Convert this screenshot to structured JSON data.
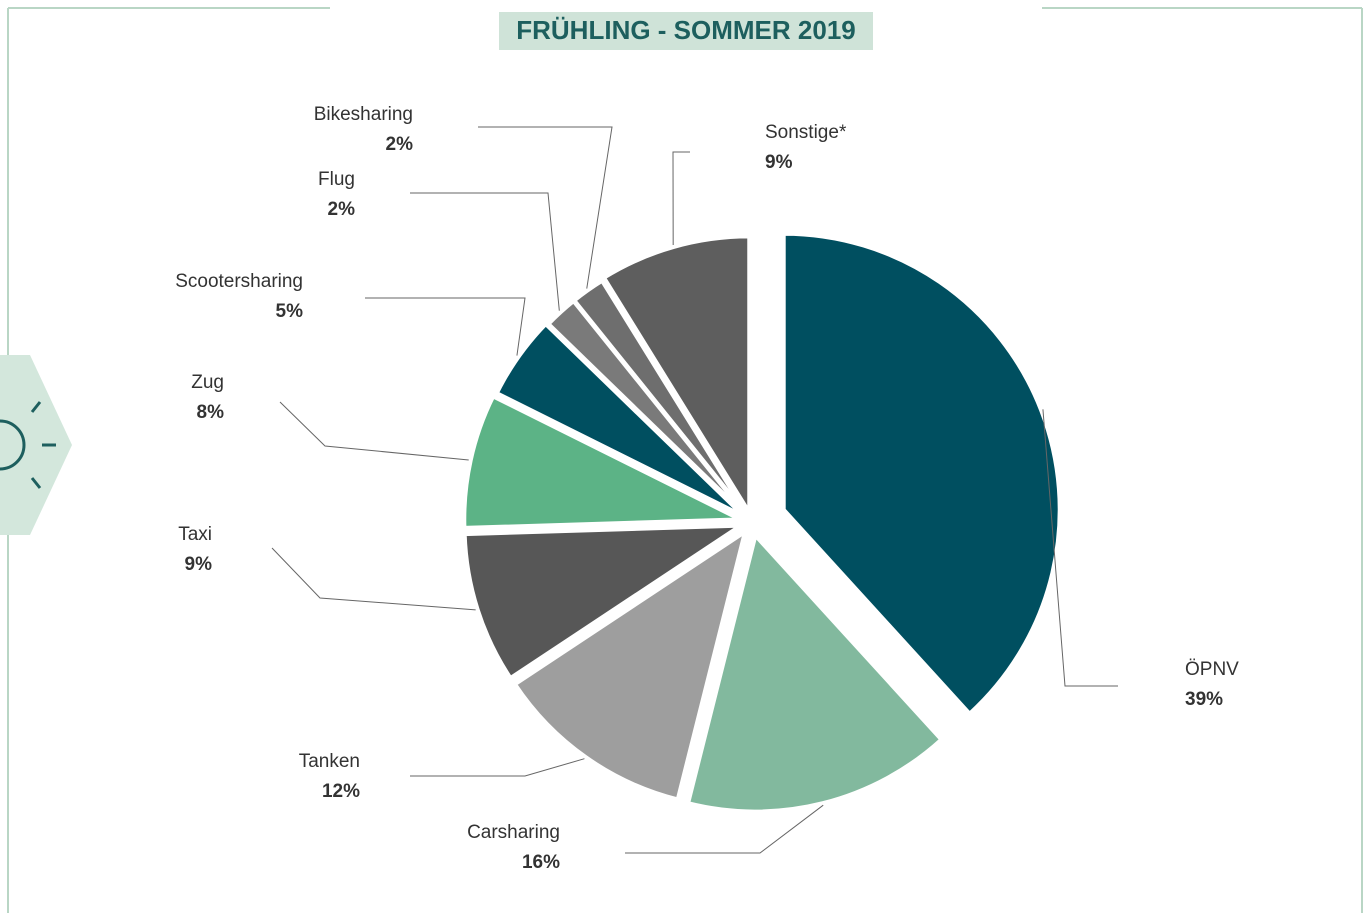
{
  "chart_data": {
    "type": "pie",
    "title": "FRÜHLING - SOMMER 2019",
    "categories": [
      "ÖPNV",
      "Carsharing",
      "Tanken",
      "Taxi",
      "Zug",
      "Scootersharing",
      "Flug",
      "Bikesharing",
      "Sonstige*"
    ],
    "values": [
      39,
      16,
      12,
      9,
      8,
      5,
      2,
      2,
      9
    ],
    "value_labels": [
      "39%",
      "16%",
      "12%",
      "9%",
      "8%",
      "5%",
      "2%",
      "2%",
      "9%"
    ],
    "colors": [
      "#004f60",
      "#82b99e",
      "#9e9e9e",
      "#575757",
      "#5cb386",
      "#004f60",
      "#7a7a7a",
      "#6e6e6e",
      "#5e5e5e"
    ]
  }
}
